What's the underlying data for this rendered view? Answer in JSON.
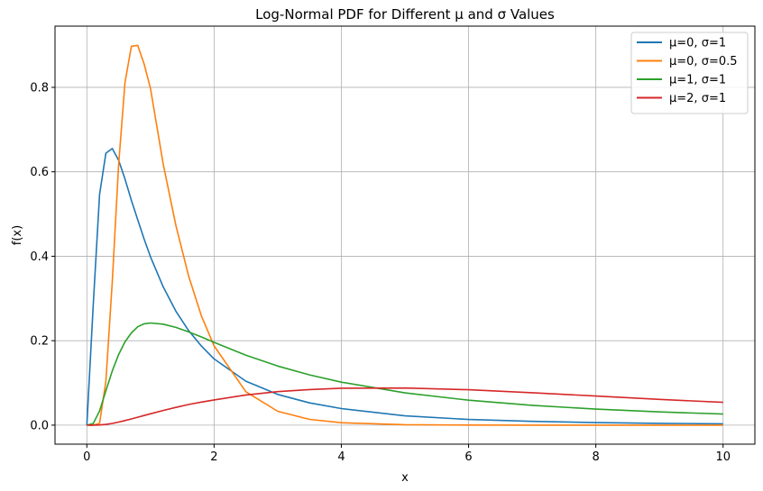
{
  "chart_data": {
    "type": "line",
    "title": "Log-Normal PDF for Different μ and σ Values",
    "xlabel": "x",
    "ylabel": "f(x)",
    "xlim": [
      -0.5,
      10.5
    ],
    "ylim": [
      -0.045,
      0.945
    ],
    "x_ticks": [
      "0",
      "2",
      "4",
      "6",
      "8",
      "10"
    ],
    "y_ticks": [
      "0.0",
      "0.2",
      "0.4",
      "0.6",
      "0.8"
    ],
    "grid": true,
    "legend_position": "top-right",
    "x": [
      0.0,
      0.1,
      0.2,
      0.3,
      0.4,
      0.5,
      0.6,
      0.7,
      0.8,
      0.9,
      1.0,
      1.2,
      1.4,
      1.6,
      1.8,
      2.0,
      2.5,
      3.0,
      3.5,
      4.0,
      5.0,
      6.0,
      7.0,
      8.0,
      9.0,
      10.0
    ],
    "series": [
      {
        "name": "μ=0, σ=1",
        "color": "#1f77b4",
        "values": [
          0.0,
          0.2815,
          0.5462,
          0.6442,
          0.655,
          0.6276,
          0.5829,
          0.5321,
          0.4864,
          0.4406,
          0.3989,
          0.3278,
          0.27,
          0.224,
          0.1873,
          0.1569,
          0.1042,
          0.0727,
          0.0527,
          0.0393,
          0.0219,
          0.0135,
          0.0089,
          0.0061,
          0.0043,
          0.0032
        ]
      },
      {
        "name": "μ=0, σ=0.5",
        "color": "#ff7f0e",
        "values": [
          0.0,
          0.0,
          0.0042,
          0.104,
          0.3398,
          0.6161,
          0.8117,
          0.8974,
          0.8993,
          0.8553,
          0.7979,
          0.6189,
          0.473,
          0.3535,
          0.2589,
          0.1876,
          0.0792,
          0.0328,
          0.0137,
          0.0058,
          0.0011,
          0.0002,
          0.0,
          0.0,
          0.0,
          0.0
        ]
      },
      {
        "name": "μ=1, σ=1",
        "color": "#2ca02c",
        "values": [
          0.0,
          0.0036,
          0.0335,
          0.0813,
          0.1285,
          0.167,
          0.1974,
          0.2186,
          0.2331,
          0.2401,
          0.242,
          0.2391,
          0.2315,
          0.2208,
          0.2089,
          0.196,
          0.1656,
          0.14,
          0.1191,
          0.1018,
          0.0764,
          0.0591,
          0.047,
          0.038,
          0.0313,
          0.0262
        ]
      },
      {
        "name": "μ=2, σ=1",
        "color": "#d62728",
        "values": [
          0.0,
          0.0,
          0.0004,
          0.0018,
          0.0041,
          0.0072,
          0.0108,
          0.0147,
          0.0188,
          0.0229,
          0.027,
          0.0349,
          0.0421,
          0.0488,
          0.0546,
          0.0597,
          0.0714,
          0.0793,
          0.0844,
          0.0874,
          0.088,
          0.0838,
          0.0768,
          0.069,
          0.0611,
          0.054
        ]
      }
    ]
  }
}
